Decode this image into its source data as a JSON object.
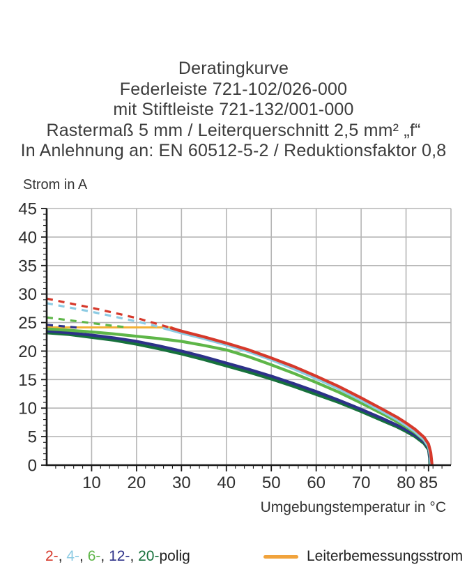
{
  "title_lines": [
    "Deratingkurve",
    "Federleiste 721-102/026-000",
    "mit Stiftleiste 721-132/001-000",
    "Rastermaß 5 mm / Leiterquerschnitt 2,5 mm² „f“",
    "In Anlehnung an: EN 60512-5-2 / Reduktionsfaktor 0,8"
  ],
  "y_axis_title": "Strom in A",
  "x_axis_title": "Umgebungstemperatur in °C",
  "legend": {
    "separator": ", ",
    "pole_suffix": "polig",
    "pole_items": [
      {
        "label": "2-",
        "color": "#D6392B"
      },
      {
        "label": "4-",
        "color": "#8CCBE3"
      },
      {
        "label": "6-",
        "color": "#5EB648"
      },
      {
        "label": "12-",
        "color": "#2D3189"
      },
      {
        "label": "20-",
        "color": "#17713C"
      }
    ],
    "rated_label": "Leiterbemessungsstrom",
    "rated_color": "#F1A33C"
  },
  "colors": {
    "grid": "#B5B5B5",
    "axis": "#1A1A1A",
    "tick_text": "#2E2E2E"
  },
  "chart_data": {
    "type": "line",
    "title": "Deratingkurve",
    "xlabel": "Umgebungstemperatur in °C",
    "ylabel": "Strom in A",
    "xlim": [
      0,
      90
    ],
    "ylim": [
      0,
      45
    ],
    "grid": true,
    "x_gridlines": [
      10,
      20,
      30,
      40,
      50,
      60,
      70,
      80,
      90
    ],
    "y_gridlines": [
      5,
      10,
      15,
      20,
      25,
      30,
      35,
      40,
      45
    ],
    "x_major_ticks": [
      10,
      20,
      30,
      40,
      50,
      60,
      70,
      80,
      85
    ],
    "y_major_ticks": [
      0,
      5,
      10,
      15,
      20,
      25,
      30,
      35,
      40,
      45
    ],
    "x_minor_step": 2,
    "y_minor_step": 1,
    "rated_line": {
      "name": "Leiterbemessungsstrom",
      "color": "#F2B238",
      "value_a": 24.15,
      "x_range": [
        0,
        28
      ]
    },
    "series": [
      {
        "name": "20-polig",
        "color": "#17713C",
        "dashed": [],
        "solid": [
          [
            0,
            23.2
          ],
          [
            5,
            22.9
          ],
          [
            10,
            22.4
          ],
          [
            15,
            21.9
          ],
          [
            20,
            21.2
          ],
          [
            25,
            20.4
          ],
          [
            30,
            19.5
          ],
          [
            35,
            18.5
          ],
          [
            40,
            17.4
          ],
          [
            45,
            16.3
          ],
          [
            50,
            15.1
          ],
          [
            55,
            13.8
          ],
          [
            60,
            12.4
          ],
          [
            65,
            11.0
          ],
          [
            70,
            9.4
          ],
          [
            75,
            7.7
          ],
          [
            78,
            6.7
          ],
          [
            80,
            5.9
          ],
          [
            82,
            5.0
          ],
          [
            84,
            3.8
          ],
          [
            85,
            2.7
          ],
          [
            85.25,
            1.2
          ],
          [
            85.3,
            0
          ]
        ]
      },
      {
        "name": "12-polig",
        "color": "#2D3189",
        "dashed": [
          [
            0,
            24.6
          ],
          [
            7,
            24.12
          ]
        ],
        "solid": [
          [
            0,
            23.55
          ],
          [
            5,
            23.2
          ],
          [
            10,
            22.8
          ],
          [
            15,
            22.3
          ],
          [
            20,
            21.7
          ],
          [
            25,
            20.9
          ],
          [
            30,
            20.0
          ],
          [
            35,
            19.0
          ],
          [
            40,
            17.9
          ],
          [
            45,
            16.8
          ],
          [
            50,
            15.6
          ],
          [
            55,
            14.3
          ],
          [
            60,
            12.9
          ],
          [
            65,
            11.4
          ],
          [
            70,
            9.8
          ],
          [
            75,
            8.1
          ],
          [
            78,
            7.0
          ],
          [
            80,
            6.2
          ],
          [
            82,
            5.3
          ],
          [
            84,
            4.1
          ],
          [
            85,
            3.0
          ],
          [
            85.3,
            1.4
          ],
          [
            85.4,
            0
          ]
        ]
      },
      {
        "name": "6-polig",
        "color": "#5EB648",
        "dashed": [
          [
            0,
            25.9
          ],
          [
            8,
            25.1
          ],
          [
            14,
            24.5
          ],
          [
            18,
            24.15
          ]
        ],
        "solid": [
          [
            0,
            23.9
          ],
          [
            5,
            23.65
          ],
          [
            10,
            23.35
          ],
          [
            15,
            23.0
          ],
          [
            20,
            22.6
          ],
          [
            25,
            22.2
          ],
          [
            30,
            21.7
          ],
          [
            35,
            21.0
          ],
          [
            40,
            20.2
          ],
          [
            45,
            19.0
          ],
          [
            50,
            17.6
          ],
          [
            55,
            16.1
          ],
          [
            60,
            14.5
          ],
          [
            65,
            12.8
          ],
          [
            70,
            10.9
          ],
          [
            75,
            8.9
          ],
          [
            78,
            7.6
          ],
          [
            80,
            6.7
          ],
          [
            82,
            5.7
          ],
          [
            84,
            4.4
          ],
          [
            85,
            3.2
          ],
          [
            85.4,
            1.6
          ],
          [
            85.5,
            0
          ]
        ]
      },
      {
        "name": "4-polig",
        "color": "#8CCBE3",
        "dashed": [
          [
            0,
            28.4
          ],
          [
            10,
            26.9
          ],
          [
            20,
            25.2
          ],
          [
            26,
            24.05
          ]
        ],
        "solid": [
          [
            26,
            24.05
          ],
          [
            30,
            23.2
          ],
          [
            35,
            22.2
          ],
          [
            40,
            21.1
          ],
          [
            45,
            19.9
          ],
          [
            50,
            18.5
          ],
          [
            55,
            16.9
          ],
          [
            60,
            15.2
          ],
          [
            65,
            13.4
          ],
          [
            70,
            11.4
          ],
          [
            75,
            9.3
          ],
          [
            78,
            8.0
          ],
          [
            80,
            7.0
          ],
          [
            82,
            5.9
          ],
          [
            84,
            4.5
          ],
          [
            85,
            3.3
          ],
          [
            85.4,
            1.8
          ],
          [
            85.6,
            0
          ]
        ]
      },
      {
        "name": "2-polig",
        "color": "#D6392B",
        "dashed": [
          [
            0,
            29.2
          ],
          [
            10,
            27.6
          ],
          [
            20,
            25.8
          ],
          [
            27.5,
            24.1
          ]
        ],
        "solid": [
          [
            27.5,
            24.1
          ],
          [
            30,
            23.5
          ],
          [
            35,
            22.5
          ],
          [
            40,
            21.4
          ],
          [
            45,
            20.2
          ],
          [
            50,
            18.8
          ],
          [
            55,
            17.3
          ],
          [
            60,
            15.6
          ],
          [
            65,
            13.8
          ],
          [
            70,
            11.8
          ],
          [
            75,
            9.7
          ],
          [
            78,
            8.4
          ],
          [
            80,
            7.4
          ],
          [
            82,
            6.3
          ],
          [
            84,
            4.9
          ],
          [
            85,
            3.7
          ],
          [
            85.5,
            2.2
          ],
          [
            85.8,
            0
          ]
        ]
      }
    ]
  }
}
